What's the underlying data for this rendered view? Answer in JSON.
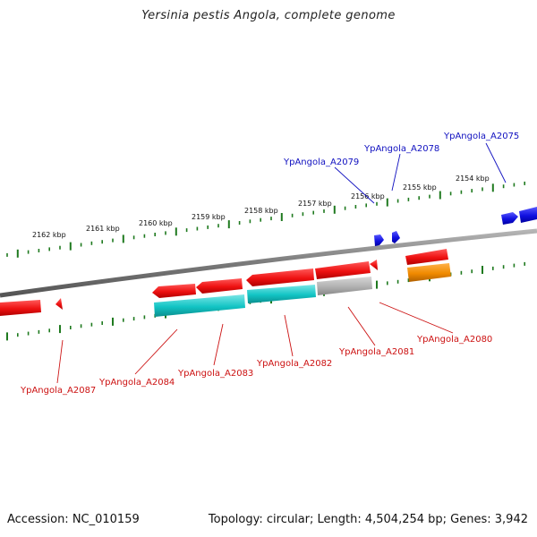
{
  "title": "Yersinia pestis Angola, complete genome",
  "footer": {
    "accession": "Accession: NC_010159",
    "summary": "Topology: circular; Length: 4,504,254 bp; Genes: 3,942"
  },
  "colors": {
    "backbone": "#7a7a7a",
    "tick": "#1f7a1f",
    "gene_forward": "#1010e0",
    "gene_reverse": "#ee1111",
    "gene_cyan": "#12c4c4",
    "gene_gray": "#b0b0b0",
    "gene_orange": "#f08a00",
    "label_forward": "#1010c0",
    "label_reverse": "#cc1111"
  },
  "scale_labels": [
    "2162 kbp",
    "2161 kbp",
    "2160 kbp",
    "2159 kbp",
    "2158 kbp",
    "2157 kbp",
    "2156 kbp",
    "2155 kbp",
    "2154 kbp"
  ],
  "genes_forward": [
    "YpAngola_A2075",
    "YpAngola_A2078",
    "YpAngola_A2079"
  ],
  "genes_reverse": [
    "YpAngola_A2080",
    "YpAngola_A2081",
    "YpAngola_A2082",
    "YpAngola_A2083",
    "YpAngola_A2084",
    "YpAngola_A2087"
  ]
}
